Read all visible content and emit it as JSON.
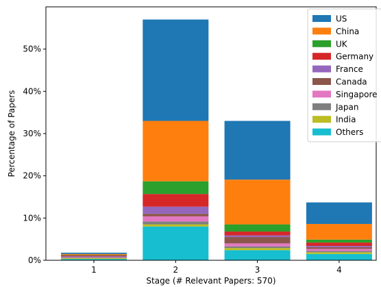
{
  "chart_data": {
    "type": "bar",
    "stacked": true,
    "xlabel": "Stage (# Relevant Papers: 570)",
    "ylabel": "Percentage of Papers",
    "ylim": [
      0,
      60
    ],
    "y_ticks": [
      0,
      10,
      20,
      30,
      40,
      50
    ],
    "y_tick_labels": [
      "0%",
      "10%",
      "20%",
      "30%",
      "40%",
      "50%"
    ],
    "categories": [
      "1",
      "2",
      "3",
      "4"
    ],
    "grid": false,
    "legend_position": "top-right",
    "series": [
      {
        "name": "Others",
        "color": "#17becf",
        "values": [
          0.3,
          8.0,
          2.4,
          1.5
        ]
      },
      {
        "name": "India",
        "color": "#bcbd22",
        "values": [
          0.2,
          0.5,
          0.5,
          0.4
        ]
      },
      {
        "name": "Japan",
        "color": "#7f7f7f",
        "values": [
          0.1,
          0.7,
          0.4,
          0.3
        ]
      },
      {
        "name": "Singapore",
        "color": "#e377c2",
        "values": [
          0.1,
          1.2,
          0.7,
          0.5
        ]
      },
      {
        "name": "Canada",
        "color": "#8c564b",
        "values": [
          0.1,
          0.6,
          1.5,
          0.4
        ]
      },
      {
        "name": "France",
        "color": "#9467bd",
        "values": [
          0.2,
          1.7,
          0.4,
          0.3
        ]
      },
      {
        "name": "Germany",
        "color": "#d62728",
        "values": [
          0.2,
          3.0,
          0.9,
          0.8
        ]
      },
      {
        "name": "UK",
        "color": "#2ca02c",
        "values": [
          0.1,
          3.0,
          1.7,
          0.7
        ]
      },
      {
        "name": "China",
        "color": "#ff7f0e",
        "values": [
          0.2,
          14.3,
          10.6,
          3.7
        ]
      },
      {
        "name": "US",
        "color": "#1f77b4",
        "values": [
          0.3,
          24.0,
          13.9,
          5.1
        ]
      }
    ],
    "legend_order": [
      "US",
      "China",
      "UK",
      "Germany",
      "France",
      "Canada",
      "Singapore",
      "Japan",
      "India",
      "Others"
    ]
  }
}
